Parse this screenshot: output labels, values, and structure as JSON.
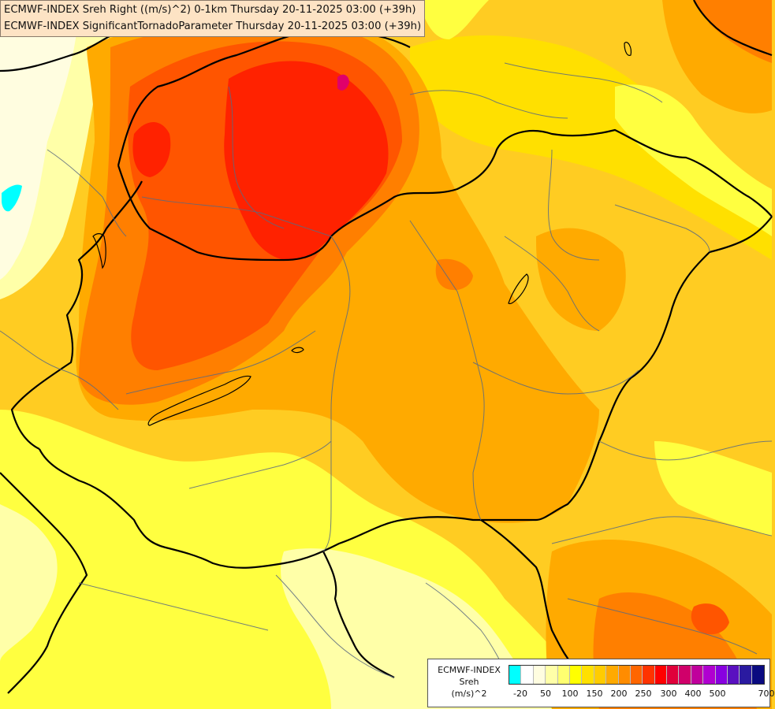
{
  "titles": {
    "line1": "ECMWF-INDEX Sreh Right ((m/s)^2) 0-1km Thursday 20-11-2025 03:00 (+39h)",
    "line2": "ECMWF-INDEX SignificantTornadoParameter Thursday 20-11-2025 03:00 (+39h)"
  },
  "legend": {
    "title_line1": "ECMWF-INDEX",
    "title_line2": "Sreh",
    "title_line3": "(m/s)^2",
    "colors": [
      "#00ffff",
      "#ffffff",
      "#fffde0",
      "#ffffa8",
      "#ffff70",
      "#ffff00",
      "#ffe000",
      "#ffcc00",
      "#ffaa00",
      "#ff8c00",
      "#ff6600",
      "#ff3300",
      "#ff0000",
      "#e0003a",
      "#d0006a",
      "#c0009c",
      "#b000d0",
      "#8800e0",
      "#5a10c0",
      "#2a1aa0",
      "#0a0a80"
    ],
    "labels": [
      "-20",
      "50",
      "100",
      "150",
      "200",
      "250",
      "300",
      "400",
      "500",
      "700"
    ]
  },
  "map": {
    "field_colors": {
      "pale": "#fffde0",
      "light_yellow": "#ffffa8",
      "yellow": "#ffff40",
      "gold": "#ffe000",
      "amber": "#ffcc22",
      "orange": "#ffaa00",
      "dark_orange": "#ff7f00",
      "red_orange": "#ff5500",
      "red": "#ff2200",
      "cyan": "#00ffff",
      "magenta": "#e0006a"
    },
    "border_color": "#000000",
    "admin_line_color": "#5a6a80"
  }
}
